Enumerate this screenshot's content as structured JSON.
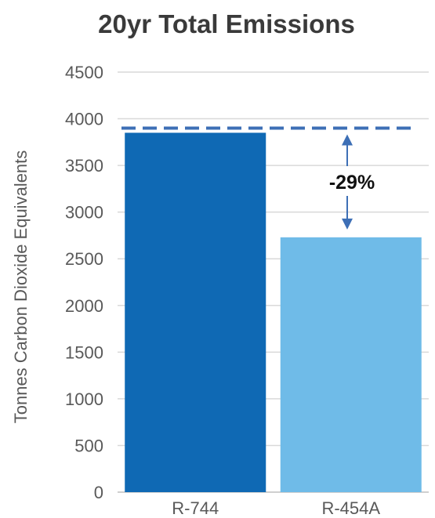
{
  "chart_data": {
    "type": "bar",
    "title": "20yr Total Emissions",
    "ylabel": "Tonnes Carbon Dioxide Equivalents",
    "xlabel": "",
    "categories": [
      "R-744",
      "R-454A"
    ],
    "values": [
      3850,
      2730
    ],
    "bar_colors": [
      "#0f69b4",
      "#6fbbe8"
    ],
    "ylim": [
      0,
      4500
    ],
    "y_ticks": [
      0,
      500,
      1000,
      1500,
      2000,
      2500,
      3000,
      3500,
      4000,
      4500
    ],
    "y_tick_labels": [
      "0",
      "500",
      "1000",
      "1500",
      "2000",
      "2500",
      "3000",
      "3500",
      "4000",
      "4500"
    ],
    "grid": true,
    "reference_line": {
      "value": 3900,
      "style": "dashed",
      "color": "#3d6fb6"
    },
    "annotation": {
      "text": "-29%",
      "from": 3900,
      "to": 2730,
      "arrow_color": "#3d6fb6"
    }
  }
}
